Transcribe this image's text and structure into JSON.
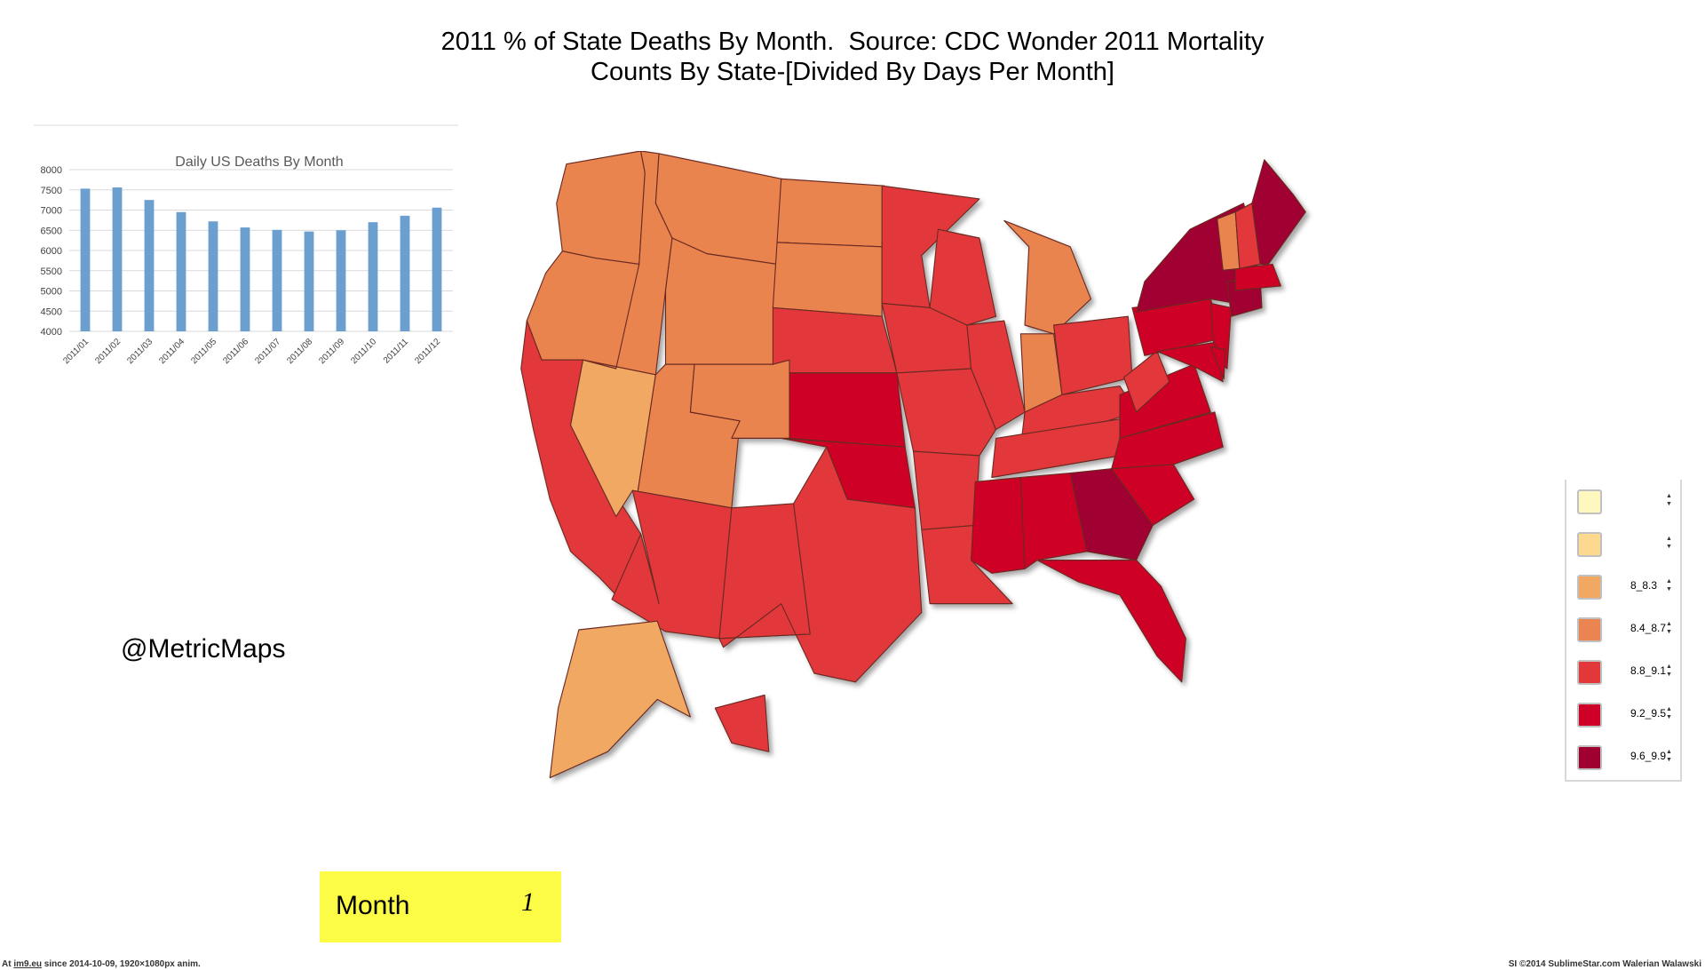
{
  "title": {
    "line1": "2011 % of State Deaths By Month.  Source: CDC Wonder 2011 Mortality",
    "line2": "Counts By State-[Divided By Days Per Month]"
  },
  "handle": "@MetricMaps",
  "month_box": {
    "label": "Month",
    "value": "1",
    "color": "#fcfc46"
  },
  "legend": {
    "items": [
      {
        "label": "",
        "color": "#fff7c0"
      },
      {
        "label": "",
        "color": "#fdd98f"
      },
      {
        "label": "8_8.3",
        "color": "#f0a863"
      },
      {
        "label": "8.4_8.7",
        "color": "#ea8450"
      },
      {
        "label": "8.8_9.1",
        "color": "#e3383a"
      },
      {
        "label": "9.2_9.5",
        "color": "#cf0028"
      },
      {
        "label": "9.6_9.9",
        "color": "#a00030"
      }
    ]
  },
  "footer": {
    "left_prefix": "At ",
    "left_link": "im9.eu",
    "left_suffix": " since 2014-10-09, 1920×1080px anim.",
    "right": "SI ©2014 SublimeStar.com Walerian Walawski"
  },
  "chart_data": [
    {
      "type": "bar",
      "title": "Daily US Deaths By Month",
      "categories": [
        "2011/01",
        "2011/02",
        "2011/03",
        "2011/04",
        "2011/05",
        "2011/06",
        "2011/07",
        "2011/08",
        "2011/09",
        "2011/10",
        "2011/11",
        "2011/12"
      ],
      "values": [
        7530,
        7560,
        7250,
        6950,
        6720,
        6570,
        6510,
        6470,
        6500,
        6700,
        6860,
        7060
      ],
      "ylim": [
        4000,
        8000
      ],
      "yticks": [
        4000,
        4500,
        5000,
        5500,
        6000,
        6500,
        7000,
        7500,
        8000
      ],
      "grid": true,
      "bar_color": "#6a9fcf"
    },
    {
      "type": "choropleth",
      "map": "United States by state, % of annual deaths occurring in the month",
      "classes": [
        "8_8.3",
        "8.4_8.7",
        "8.8_9.1",
        "9.2_9.5",
        "9.6_9.9"
      ]
    }
  ]
}
